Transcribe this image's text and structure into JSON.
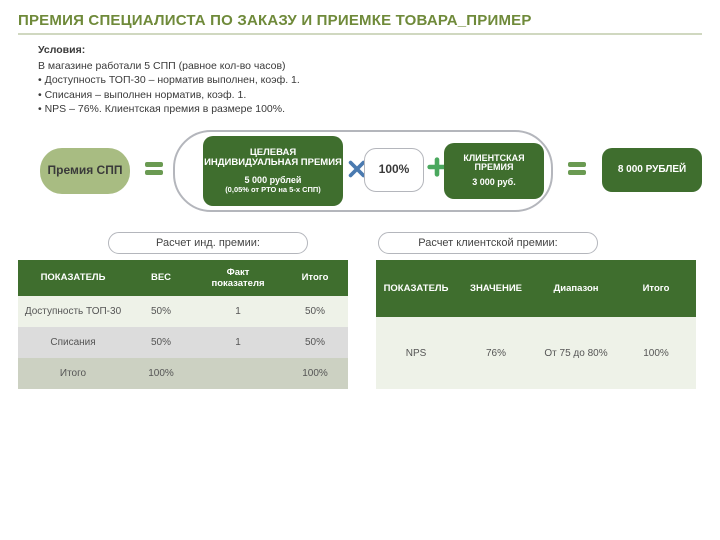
{
  "colors": {
    "title": "#6f8a3a",
    "title_underline": "#d0d8c0",
    "pill_spp_bg": "#a8bc82",
    "pill_ind_bg": "#3f6e2e",
    "pill_cli_bg": "#3f6e2e",
    "pill_res_bg": "#3f6e2e",
    "border_gray": "#b4b6bc",
    "op_eq": "#6a9a52",
    "op_x": "#4a7ab0",
    "op_plus": "#4aa85e",
    "th_bg": "#3f6e2e",
    "row_alt1": "#eef2e8",
    "row_alt2": "#d8d8d8",
    "row_total": "#c8cdbd"
  },
  "title": "ПРЕМИЯ СПЕЦИАЛИСТА ПО ЗАКАЗУ И ПРИЕМКЕ ТОВАРА_ПРИМЕР",
  "conditions": {
    "heading": "Условия:",
    "intro": "В магазине работали 5 СПП (равное кол-во часов)",
    "bullets": [
      "Доступность ТОП-30 – норматив выполнен, коэф. 1.",
      "Списания –  выполнен норматив, коэф. 1.",
      "NPS – 76%. Клиентская премия в размере 100%."
    ]
  },
  "formula": {
    "spp_label": "Премия СПП",
    "ind": {
      "l1": "ЦЕЛЕВАЯ ИНДИВИДУАЛЬНАЯ ПРЕМИЯ",
      "l2": "5 000 рублей",
      "l3": "(0,05% от РТО на 5-х СПП)"
    },
    "pct": "100%",
    "cli": {
      "l1": "КЛИЕНТСКАЯ ПРЕМИЯ",
      "l2": "3 000 руб."
    },
    "result": "8 000 РУБЛЕЙ"
  },
  "table1": {
    "caption": "Расчет инд. премии:",
    "headers": [
      "ПОКАЗАТЕЛЬ",
      "ВЕС",
      "Факт показателя",
      "Итого"
    ],
    "rows": [
      {
        "cells": [
          "Доступность ТОП-30",
          "50%",
          "1",
          "50%"
        ],
        "bg": "#eef2e8"
      },
      {
        "cells": [
          "Списания",
          "50%",
          "1",
          "50%"
        ],
        "bg": "#dcdcdc"
      },
      {
        "cells": [
          "Итого",
          "100%",
          "",
          "100%"
        ],
        "bg": "#ccd1c2"
      }
    ]
  },
  "table2": {
    "caption": "Расчет клиентской премии:",
    "headers": [
      "ПОКАЗАТЕЛЬ",
      "ЗНАЧЕНИЕ",
      "Диапазон",
      "Итого"
    ],
    "rows": [
      {
        "cells": [
          "NPS",
          "76%",
          "От 75 до 80%",
          "100%"
        ],
        "bg": "#eef2e8"
      }
    ]
  }
}
